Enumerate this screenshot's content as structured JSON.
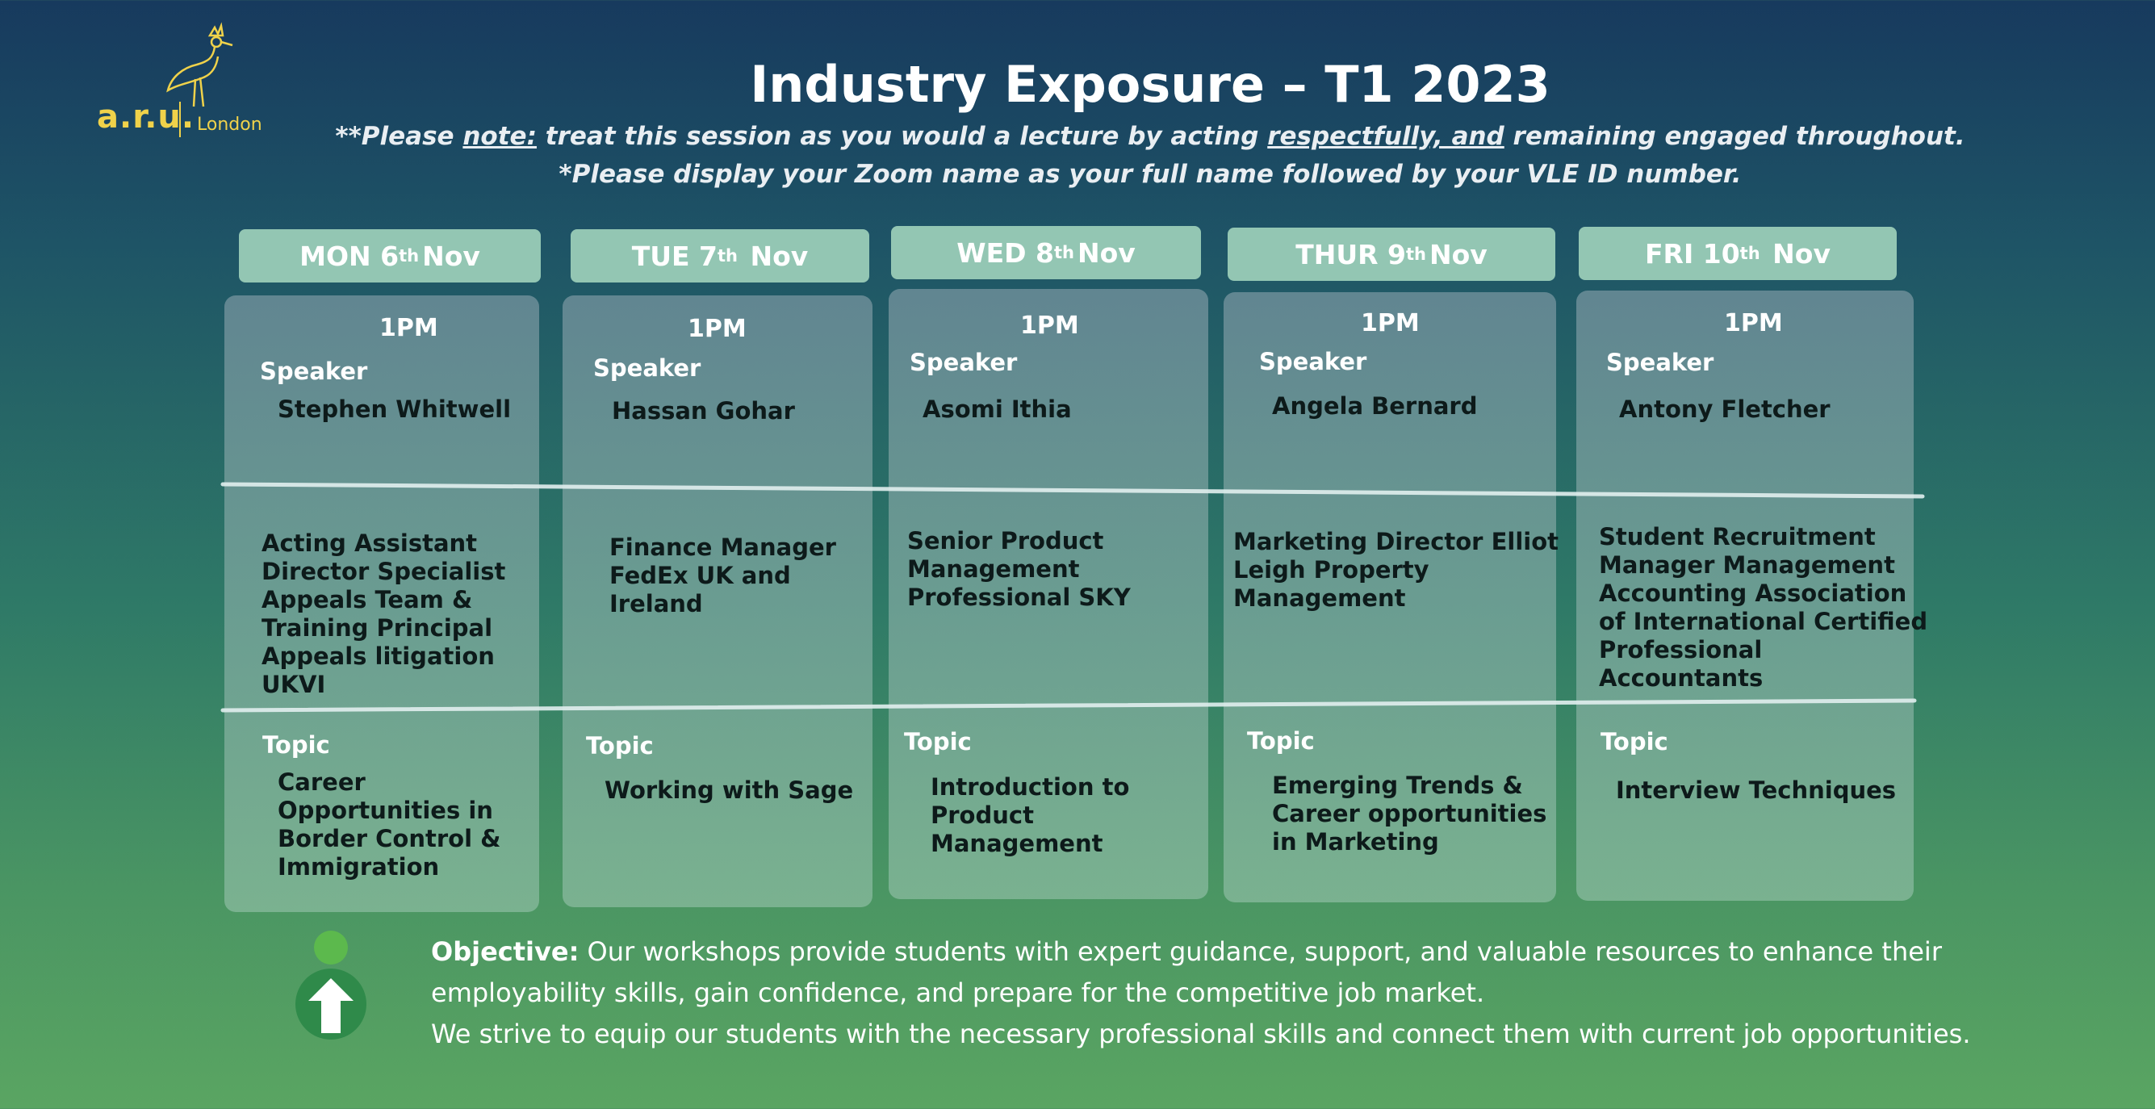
{
  "logo": {
    "text": "a.r.u.",
    "city": "London"
  },
  "title": "Industry Exposure – T1 2023",
  "notes": {
    "line1_prefix": "**Please ",
    "line1_note": "note:",
    "line1_mid": " treat this session as you would a lecture by acting ",
    "line1_respect": "respectfully, and",
    "line1_suffix": " remaining engaged throughout.",
    "line2": "*Please display your Zoom name as your full name followed by your VLE ID number."
  },
  "labels": {
    "speaker": "Speaker",
    "topic": "Topic"
  },
  "days": [
    {
      "day": "MON 6",
      "sup": "th",
      "month": "Nov",
      "time": "1PM",
      "speaker": "Stephen Whitwell",
      "role": [
        "Acting Assistant",
        "Director Specialist",
        "Appeals Team &",
        "Training Principal",
        "Appeals litigation",
        "UKVI"
      ],
      "topic": [
        "Career",
        "Opportunities in",
        "Border Control &",
        "Immigration"
      ]
    },
    {
      "day": "TUE 7",
      "sup": "th",
      "month": "Nov",
      "time": "1PM",
      "speaker": "Hassan Gohar",
      "role": [
        "Finance Manager",
        "FedEx UK and",
        "Ireland"
      ],
      "topic": [
        "Working with Sage"
      ]
    },
    {
      "day": "WED 8",
      "sup": "th",
      "month": "Nov",
      "time": "1PM",
      "speaker": "Asomi Ithia",
      "role": [
        "Senior Product",
        "Management",
        "Professional SKY"
      ],
      "topic": [
        "Introduction to",
        "Product",
        "Management"
      ]
    },
    {
      "day": "THUR 9",
      "sup": "th",
      "month": "Nov",
      "time": "1PM",
      "speaker": "Angela Bernard",
      "role": [
        "Marketing Director Elliot",
        "Leigh Property",
        "Management"
      ],
      "topic": [
        "Emerging Trends &",
        "Career opportunities",
        "in  Marketing"
      ]
    },
    {
      "day": "FRI 10",
      "sup": "th",
      "month": "Nov",
      "time": "1PM",
      "speaker": "Antony Fletcher",
      "role": [
        "Student Recruitment",
        "Manager Management",
        "Accounting Association",
        "of International Certified",
        "Professional",
        "Accountants"
      ],
      "topic": [
        "Interview Techniques"
      ]
    }
  ],
  "objective": {
    "label": "Objective:",
    "text1": " Our workshops provide students with expert guidance, support, and valuable resources to enhance their employability skills, gain confidence, and prepare for the competitive job market.",
    "text2": "We strive to equip our students with the necessary professional skills and connect them with current job opportunities."
  },
  "colors": {
    "accent": "#93c6b3",
    "logo": "#f0d24a",
    "icon": "#2f8a4a"
  }
}
